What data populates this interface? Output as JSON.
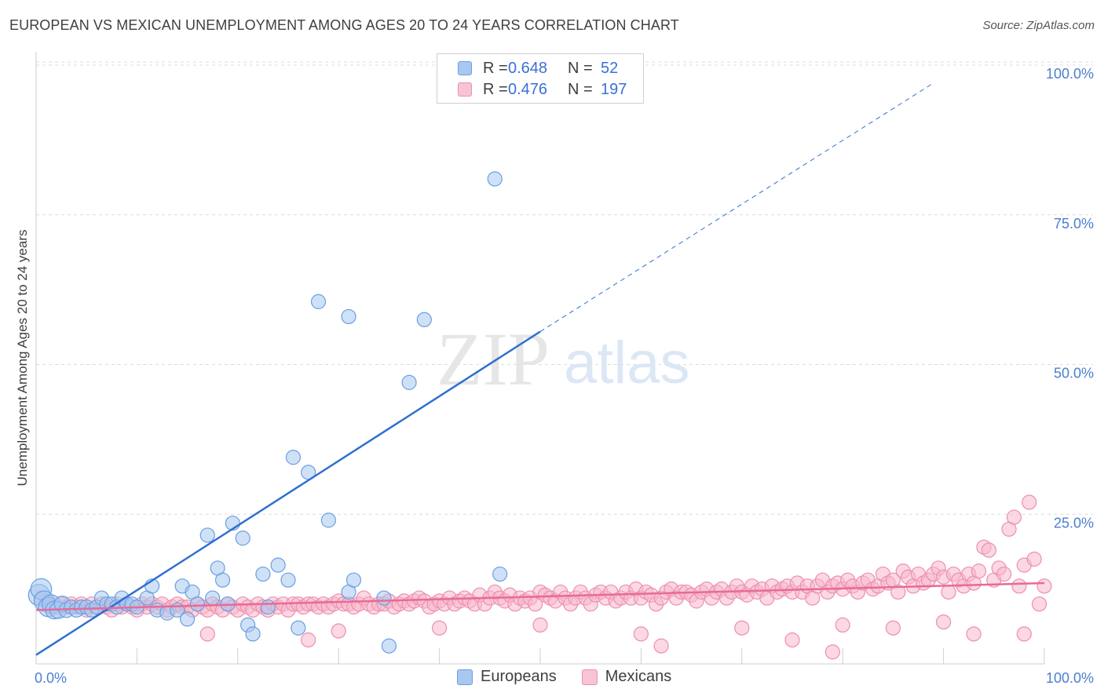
{
  "header": {
    "title": "EUROPEAN VS MEXICAN UNEMPLOYMENT AMONG AGES 20 TO 24 YEARS CORRELATION CHART",
    "source": "Source: ZipAtlas.com"
  },
  "watermark": {
    "zip": "ZIP",
    "atlas": "atlas"
  },
  "legend": {
    "rows": [
      {
        "r_label": "R =",
        "r_value": "0.648",
        "n_label": "N =",
        "n_value": "52"
      },
      {
        "r_label": "R =",
        "r_value": "0.476",
        "n_label": "N =",
        "n_value": "197"
      }
    ]
  },
  "bottom_legend": {
    "europeans": "Europeans",
    "mexicans": "Mexicans"
  },
  "colors": {
    "europeans_fill": "#a8c8f0",
    "europeans_stroke": "#6a9fe0",
    "europeans_line": "#2f6fd0",
    "mexicans_fill": "#f8b8cc",
    "mexicans_stroke": "#ec8fae",
    "mexicans_line": "#e86a98",
    "tick": "#4a7fd0",
    "grid": "#dcdcdc"
  },
  "chart_data": {
    "type": "scatter",
    "title": "EUROPEAN VS MEXICAN UNEMPLOYMENT AMONG AGES 20 TO 24 YEARS CORRELATION CHART",
    "xlabel": "",
    "ylabel": "Unemployment Among Ages 20 to 24 years",
    "xlim": [
      0,
      100
    ],
    "ylim": [
      0,
      105
    ],
    "x_tick_labels": [
      "0.0%",
      "100.0%"
    ],
    "y_tick_labels": [
      "100.0%",
      "75.0%",
      "50.0%",
      "25.0%"
    ],
    "y_ticks": [
      100,
      75,
      50,
      25
    ],
    "series": [
      {
        "name": "Europeans",
        "R": 0.648,
        "N": 52,
        "trend": {
          "x0": 0,
          "y0": 1.5,
          "x_solid_end": 50,
          "y_solid_end": 55.5,
          "x_dash_end": 89,
          "y_dash_end": 97
        },
        "points": [
          [
            0.3,
            11.5
          ],
          [
            0.5,
            12.5
          ],
          [
            0.8,
            10.5
          ],
          [
            1.2,
            9.5
          ],
          [
            1.5,
            10
          ],
          [
            1.8,
            9
          ],
          [
            2.2,
            9
          ],
          [
            2.6,
            10
          ],
          [
            3,
            9
          ],
          [
            3.5,
            9.5
          ],
          [
            4,
            9
          ],
          [
            4.5,
            9.5
          ],
          [
            5,
            9.5
          ],
          [
            5.5,
            9
          ],
          [
            6,
            9.5
          ],
          [
            6.5,
            11
          ],
          [
            7,
            10
          ],
          [
            7.5,
            10
          ],
          [
            8,
            9.5
          ],
          [
            8.5,
            11
          ],
          [
            9,
            10
          ],
          [
            9.5,
            10
          ],
          [
            10,
            9.5
          ],
          [
            11,
            11
          ],
          [
            11.5,
            13
          ],
          [
            12,
            9
          ],
          [
            13,
            8.5
          ],
          [
            14,
            9
          ],
          [
            14.5,
            13
          ],
          [
            15,
            7.5
          ],
          [
            15.5,
            12
          ],
          [
            16,
            10
          ],
          [
            17,
            21.5
          ],
          [
            17.5,
            11
          ],
          [
            18,
            16
          ],
          [
            18.5,
            14
          ],
          [
            19,
            10
          ],
          [
            19.5,
            23.5
          ],
          [
            20.5,
            21
          ],
          [
            21,
            6.5
          ],
          [
            21.5,
            5
          ],
          [
            22.5,
            15
          ],
          [
            23,
            9.5
          ],
          [
            24,
            16.5
          ],
          [
            25,
            14
          ],
          [
            25.5,
            34.5
          ],
          [
            26,
            6
          ],
          [
            27,
            32
          ],
          [
            28,
            60.5
          ],
          [
            29,
            24
          ],
          [
            31,
            58
          ],
          [
            31,
            12
          ],
          [
            31.5,
            14
          ],
          [
            35,
            3
          ],
          [
            37,
            47
          ],
          [
            38.5,
            57.5
          ],
          [
            34.5,
            11
          ],
          [
            46,
            15
          ],
          [
            45.5,
            81
          ]
        ]
      },
      {
        "name": "Mexicans",
        "R": 0.476,
        "N": 197,
        "trend": {
          "x0": 0,
          "y0": 9,
          "x1": 100,
          "y1": 13.5
        },
        "points": [
          [
            0.5,
            11
          ],
          [
            1,
            10.5
          ],
          [
            1.5,
            10
          ],
          [
            2,
            9.5
          ],
          [
            2.5,
            10
          ],
          [
            3,
            9.5
          ],
          [
            3.5,
            10
          ],
          [
            4,
            9.5
          ],
          [
            4.5,
            10
          ],
          [
            5,
            9
          ],
          [
            5.5,
            10
          ],
          [
            6,
            9.5
          ],
          [
            6.5,
            10
          ],
          [
            7,
            9.5
          ],
          [
            7.5,
            9
          ],
          [
            8,
            10
          ],
          [
            8.5,
            9.5
          ],
          [
            9,
            10
          ],
          [
            9.5,
            9.5
          ],
          [
            10,
            9
          ],
          [
            10.5,
            10
          ],
          [
            11,
            9.5
          ],
          [
            11.5,
            10
          ],
          [
            12,
            9.5
          ],
          [
            12.5,
            10
          ],
          [
            13,
            9
          ],
          [
            13.5,
            9.5
          ],
          [
            14,
            10
          ],
          [
            14.5,
            9.5
          ],
          [
            15,
            9.5
          ],
          [
            15.5,
            9
          ],
          [
            16,
            10
          ],
          [
            16.5,
            9.5
          ],
          [
            17,
            9
          ],
          [
            17.5,
            10
          ],
          [
            18,
            9.5
          ],
          [
            18.5,
            9
          ],
          [
            19,
            10
          ],
          [
            19.5,
            9.5
          ],
          [
            20,
            9
          ],
          [
            20.5,
            10
          ],
          [
            21,
            9.5
          ],
          [
            21.5,
            9
          ],
          [
            22,
            10
          ],
          [
            22.5,
            9.5
          ],
          [
            23,
            9
          ],
          [
            23.5,
            10
          ],
          [
            24,
            9.5
          ],
          [
            24.5,
            10
          ],
          [
            25,
            9
          ],
          [
            25.5,
            10
          ],
          [
            26,
            10
          ],
          [
            26.5,
            9.5
          ],
          [
            27,
            10
          ],
          [
            27.5,
            10
          ],
          [
            28,
            9.5
          ],
          [
            28.5,
            10
          ],
          [
            29,
            9.5
          ],
          [
            29.5,
            10
          ],
          [
            30,
            10.5
          ],
          [
            30.5,
            10
          ],
          [
            31,
            10
          ],
          [
            31.5,
            9.5
          ],
          [
            32,
            10
          ],
          [
            32.5,
            11
          ],
          [
            33,
            10
          ],
          [
            33.5,
            9.5
          ],
          [
            34,
            10
          ],
          [
            34.5,
            10
          ],
          [
            35,
            10.5
          ],
          [
            35.5,
            9.5
          ],
          [
            36,
            10
          ],
          [
            36.5,
            10.5
          ],
          [
            37,
            10
          ],
          [
            37.5,
            10.5
          ],
          [
            38,
            11
          ],
          [
            38.5,
            10.5
          ],
          [
            39,
            9.5
          ],
          [
            39.5,
            10
          ],
          [
            40,
            10.5
          ],
          [
            40.5,
            10
          ],
          [
            41,
            11
          ],
          [
            41.5,
            10
          ],
          [
            42,
            10.5
          ],
          [
            42.5,
            11
          ],
          [
            43,
            10.5
          ],
          [
            43.5,
            10
          ],
          [
            44,
            11.5
          ],
          [
            44.5,
            10
          ],
          [
            45,
            11
          ],
          [
            45.5,
            12
          ],
          [
            46,
            11
          ],
          [
            46.5,
            10.5
          ],
          [
            47,
            11.5
          ],
          [
            47.5,
            10
          ],
          [
            48,
            11
          ],
          [
            48.5,
            10.5
          ],
          [
            49,
            11
          ],
          [
            49.5,
            10
          ],
          [
            50,
            12
          ],
          [
            50.5,
            11.5
          ],
          [
            51,
            11
          ],
          [
            51.5,
            10.5
          ],
          [
            52,
            12
          ],
          [
            52.5,
            11
          ],
          [
            53,
            10
          ],
          [
            53.5,
            11
          ],
          [
            54,
            12
          ],
          [
            54.5,
            11
          ],
          [
            55,
            10
          ],
          [
            55.5,
            11.5
          ],
          [
            56,
            12
          ],
          [
            56.5,
            11
          ],
          [
            57,
            12
          ],
          [
            57.5,
            10.5
          ],
          [
            58,
            11
          ],
          [
            58.5,
            12
          ],
          [
            59,
            11
          ],
          [
            59.5,
            12.5
          ],
          [
            60,
            11
          ],
          [
            60.5,
            12
          ],
          [
            61,
            11.5
          ],
          [
            61.5,
            10
          ],
          [
            62,
            11
          ],
          [
            62.5,
            12
          ],
          [
            63,
            12.5
          ],
          [
            63.5,
            11
          ],
          [
            64,
            12
          ],
          [
            64.5,
            12
          ],
          [
            65,
            11.5
          ],
          [
            65.5,
            10.5
          ],
          [
            66,
            12
          ],
          [
            66.5,
            12.5
          ],
          [
            67,
            11
          ],
          [
            67.5,
            12
          ],
          [
            68,
            12.5
          ],
          [
            68.5,
            11
          ],
          [
            69,
            12
          ],
          [
            69.5,
            13
          ],
          [
            70,
            12
          ],
          [
            70.5,
            11.5
          ],
          [
            71,
            13
          ],
          [
            71.5,
            12
          ],
          [
            72,
            12.5
          ],
          [
            72.5,
            11
          ],
          [
            73,
            13
          ],
          [
            73.5,
            12
          ],
          [
            74,
            12.5
          ],
          [
            74.5,
            13
          ],
          [
            75,
            12
          ],
          [
            75.5,
            13.5
          ],
          [
            76,
            12
          ],
          [
            76.5,
            13
          ],
          [
            77,
            11
          ],
          [
            77.5,
            13
          ],
          [
            78,
            14
          ],
          [
            78.5,
            12
          ],
          [
            79,
            13
          ],
          [
            79.5,
            13.5
          ],
          [
            80,
            12.5
          ],
          [
            80.5,
            14
          ],
          [
            81,
            13
          ],
          [
            81.5,
            12
          ],
          [
            82,
            13.5
          ],
          [
            82.5,
            14
          ],
          [
            83,
            12.5
          ],
          [
            83.5,
            13
          ],
          [
            84,
            15
          ],
          [
            84.5,
            13.5
          ],
          [
            85,
            14
          ],
          [
            85.5,
            12
          ],
          [
            86,
            15.5
          ],
          [
            86.5,
            14.5
          ],
          [
            87,
            13
          ],
          [
            87.5,
            15
          ],
          [
            88,
            13.5
          ],
          [
            88.5,
            14
          ],
          [
            89,
            15
          ],
          [
            89.5,
            16
          ],
          [
            90,
            14.5
          ],
          [
            90.5,
            12
          ],
          [
            91,
            15
          ],
          [
            91.5,
            14
          ],
          [
            92,
            13
          ],
          [
            92.5,
            15
          ],
          [
            93,
            13.5
          ],
          [
            93.5,
            15.5
          ],
          [
            94,
            19.5
          ],
          [
            94.5,
            19
          ],
          [
            95,
            14
          ],
          [
            95.5,
            16
          ],
          [
            96,
            15
          ],
          [
            96.5,
            22.5
          ],
          [
            97,
            24.5
          ],
          [
            97.5,
            13
          ],
          [
            98,
            16.5
          ],
          [
            98.5,
            27
          ],
          [
            99,
            17.5
          ],
          [
            99.5,
            10
          ],
          [
            100,
            13
          ],
          [
            17,
            5
          ],
          [
            27,
            4
          ],
          [
            30,
            5.5
          ],
          [
            40,
            6
          ],
          [
            50,
            6.5
          ],
          [
            60,
            5
          ],
          [
            70,
            6
          ],
          [
            75,
            4
          ],
          [
            80,
            6.5
          ],
          [
            85,
            6
          ],
          [
            90,
            7
          ],
          [
            93,
            5
          ],
          [
            98,
            5
          ],
          [
            62,
            3
          ],
          [
            79,
            2
          ]
        ]
      }
    ]
  }
}
